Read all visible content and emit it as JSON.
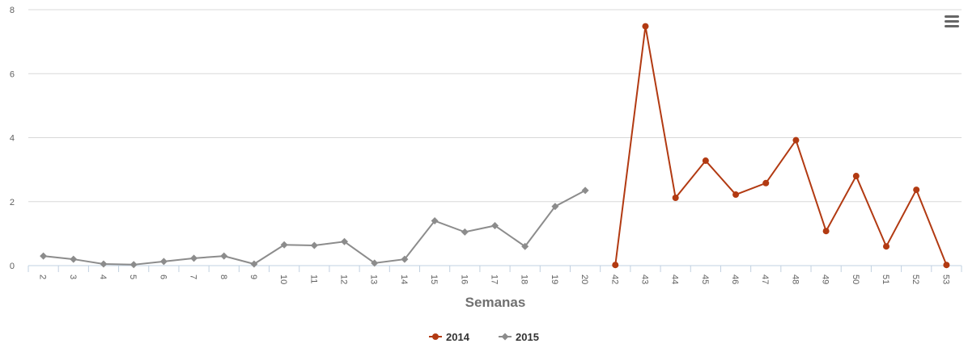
{
  "chart_data": {
    "type": "line",
    "x_label": "Semanas",
    "categories": [
      "2",
      "3",
      "4",
      "5",
      "6",
      "7",
      "8",
      "9",
      "10",
      "11",
      "12",
      "13",
      "14",
      "15",
      "16",
      "17",
      "18",
      "19",
      "20",
      "42",
      "43",
      "44",
      "45",
      "46",
      "47",
      "48",
      "49",
      "50",
      "51",
      "52",
      "53"
    ],
    "series": [
      {
        "name": "2014",
        "color": "#b23a12",
        "marker": "circle",
        "values": [
          null,
          null,
          null,
          null,
          null,
          null,
          null,
          null,
          null,
          null,
          null,
          null,
          null,
          null,
          null,
          null,
          null,
          null,
          null,
          0.02,
          7.48,
          2.12,
          3.28,
          2.22,
          2.58,
          3.92,
          1.08,
          2.8,
          0.6,
          2.37,
          0.02
        ]
      },
      {
        "name": "2015",
        "color": "#8c8c8c",
        "marker": "diamond",
        "values": [
          0.3,
          0.2,
          0.05,
          0.03,
          0.13,
          0.23,
          0.3,
          0.05,
          0.65,
          0.63,
          0.75,
          0.08,
          0.2,
          1.4,
          1.05,
          1.25,
          0.6,
          1.85,
          2.35,
          null,
          null,
          null,
          null,
          null,
          null,
          null,
          null,
          null,
          null,
          null,
          null
        ]
      }
    ],
    "ylim": [
      0,
      8
    ],
    "yticks": [
      0,
      2,
      4,
      6,
      8
    ],
    "grid": true,
    "legend": "bottom"
  }
}
